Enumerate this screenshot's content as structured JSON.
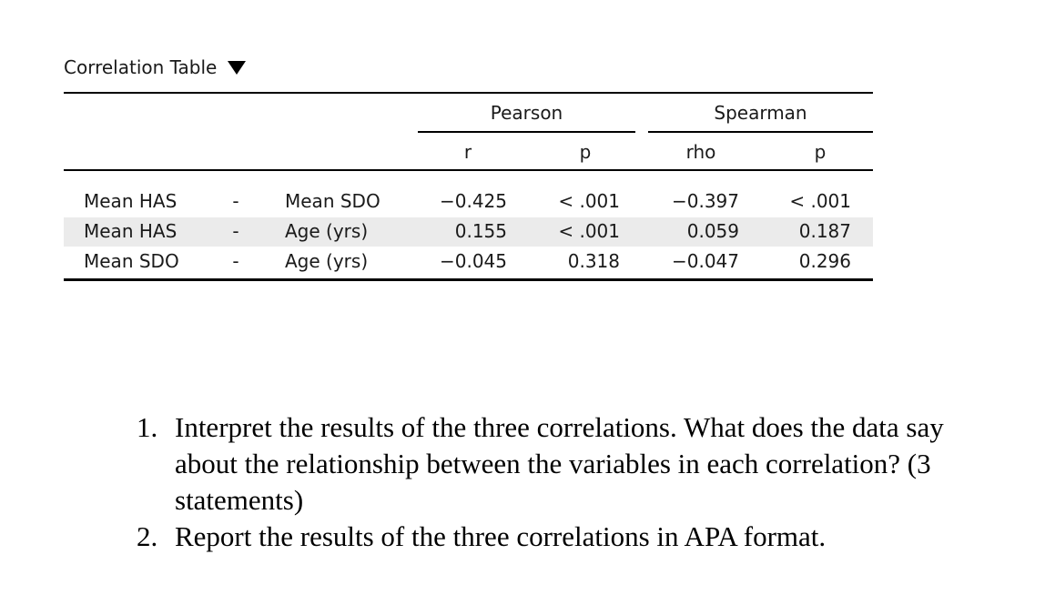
{
  "table": {
    "title": "Correlation Table",
    "groups": [
      "Pearson",
      "Spearman"
    ],
    "columns": [
      "r",
      "p",
      "rho",
      "p"
    ],
    "rows": [
      {
        "var1": "Mean HAS",
        "sep": "-",
        "var2": "Mean SDO",
        "pearson_r": "−0.425",
        "pearson_p": "< .001",
        "spearman_rho": "−0.397",
        "spearman_p": "< .001"
      },
      {
        "var1": "Mean HAS",
        "sep": "-",
        "var2": "Age (yrs)",
        "pearson_r": "0.155",
        "pearson_p": "< .001",
        "spearman_rho": "0.059",
        "spearman_p": "0.187"
      },
      {
        "var1": "Mean SDO",
        "sep": "-",
        "var2": "Age (yrs)",
        "pearson_r": "−0.045",
        "pearson_p": "0.318",
        "spearman_rho": "−0.047",
        "spearman_p": "0.296"
      }
    ]
  },
  "questions": [
    {
      "num": "1.",
      "text": "Interpret the results of the three correlations. What does the data say about the relationship between the variables in each correlation? (3 statements)"
    },
    {
      "num": "2.",
      "text": "Report the results of the three correlations in APA format."
    }
  ]
}
